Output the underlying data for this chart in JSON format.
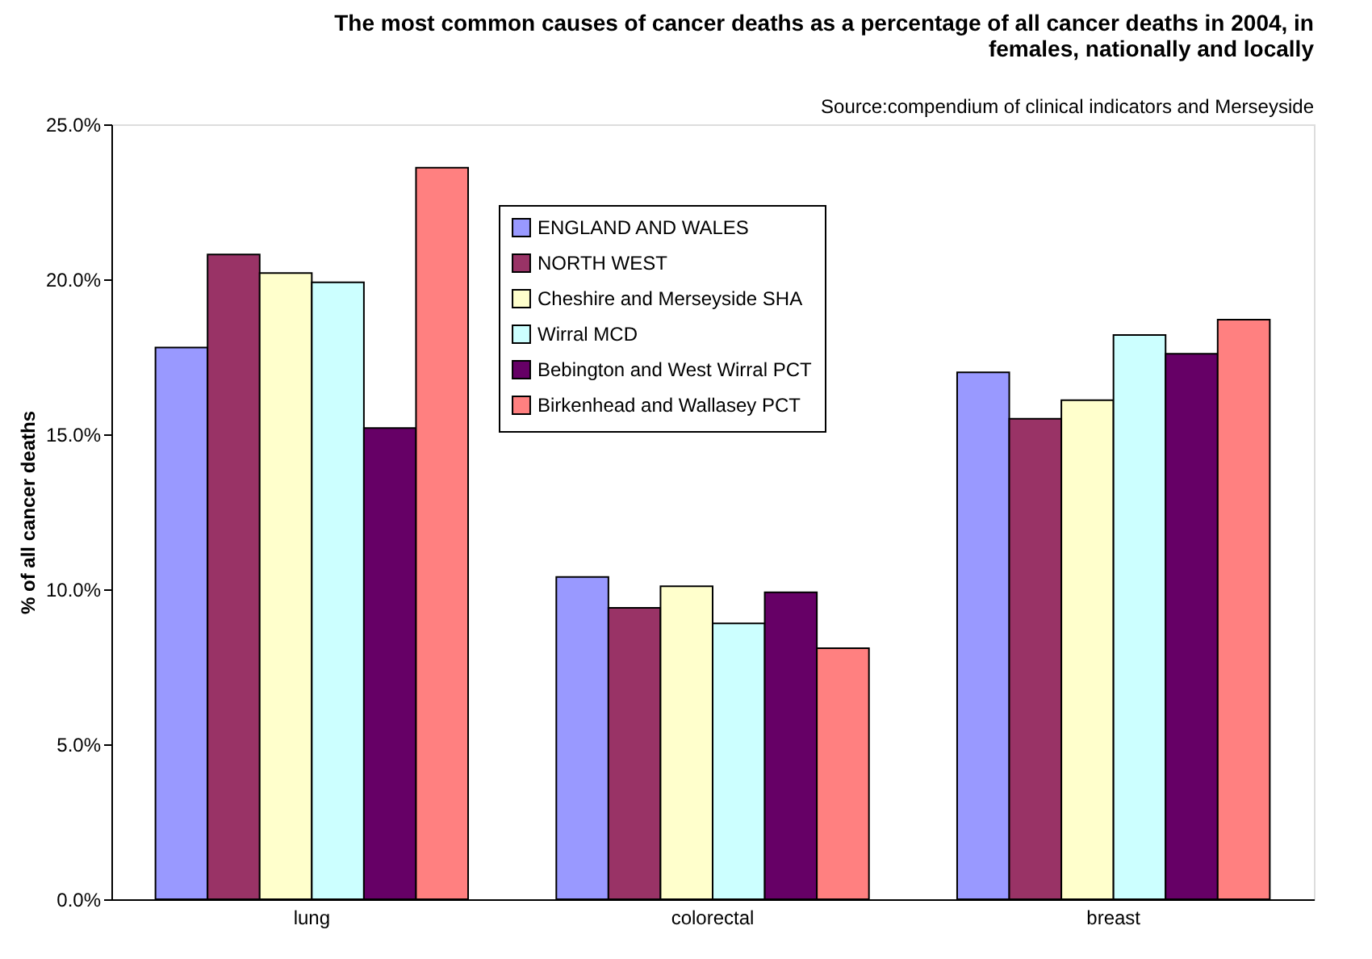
{
  "chart_data": {
    "type": "bar",
    "title": [
      "The most common causes of cancer deaths as a percentage of all cancer deaths in 2004, in",
      "females, nationally and locally"
    ],
    "ylabel": "% of all cancer deaths",
    "annotations": [
      "Source:compendium of clinical indicators and Merseyside"
    ],
    "categories": [
      "lung",
      "colorectal",
      "breast"
    ],
    "series": [
      {
        "name": "ENGLAND AND WALES",
        "color": "#9999ff",
        "values": [
          17.8,
          10.4,
          17.0
        ]
      },
      {
        "name": "NORTH WEST",
        "color": "#993366",
        "values": [
          20.8,
          9.4,
          15.5
        ]
      },
      {
        "name": "Cheshire and Merseyside SHA",
        "color": "#ffffcc",
        "values": [
          20.2,
          10.1,
          16.1
        ]
      },
      {
        "name": "Wirral MCD",
        "color": "#ccffff",
        "values": [
          19.9,
          8.9,
          18.2
        ]
      },
      {
        "name": "Bebington and West Wirral PCT",
        "color": "#660066",
        "values": [
          15.2,
          9.9,
          17.6
        ]
      },
      {
        "name": "Birkenhead and Wallasey PCT",
        "color": "#ff8080",
        "values": [
          23.6,
          8.1,
          18.7
        ]
      }
    ],
    "ylim": [
      0,
      25
    ],
    "yticks": [
      {
        "value": 0,
        "label": "0.0%"
      },
      {
        "value": 5,
        "label": "5.0%"
      },
      {
        "value": 10,
        "label": "10.0%"
      },
      {
        "value": 15,
        "label": "15.0%"
      },
      {
        "value": 20,
        "label": "20.0%"
      },
      {
        "value": 25,
        "label": "25.0%"
      }
    ],
    "grid": false,
    "legend": "top"
  }
}
